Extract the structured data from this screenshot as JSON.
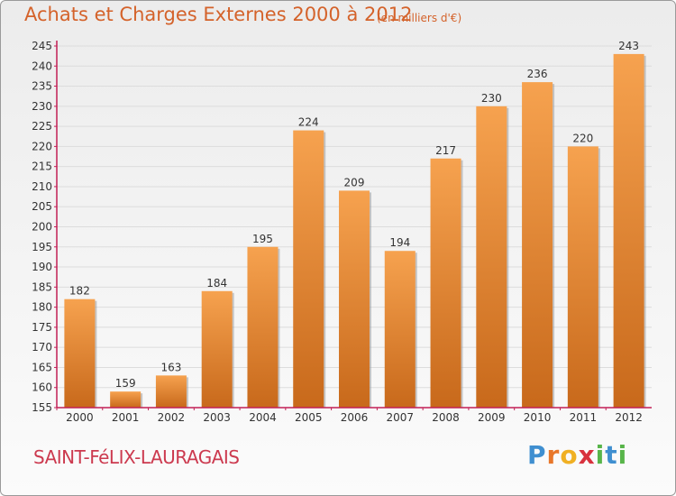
{
  "title": "Achats et Charges Externes 2000 à 2012",
  "subtitle": "(en milliers d'€)",
  "location": "SAINT-FéLIX-LAURAGAIS",
  "logo": {
    "text": "Proxiti",
    "letter_colors": [
      "#3f8fd0",
      "#e8772a",
      "#f0b023",
      "#d8323e",
      "#58b54a",
      "#3f8fd0",
      "#58b54a"
    ]
  },
  "colors": {
    "bar_light": "#f6a24f",
    "bar_dark": "#c8691b",
    "axis": "#c21f55",
    "grid": "#dcdcdc",
    "title": "#d4622a",
    "location": "#cc3a4f"
  },
  "chart_data": {
    "type": "bar",
    "categories": [
      "2000",
      "2001",
      "2002",
      "2003",
      "2004",
      "2005",
      "2006",
      "2007",
      "2008",
      "2009",
      "2010",
      "2011",
      "2012"
    ],
    "values": [
      182,
      159,
      163,
      184,
      195,
      224,
      209,
      194,
      217,
      230,
      236,
      220,
      243
    ],
    "ylim": [
      155,
      245
    ],
    "yticks": [
      155,
      160,
      165,
      170,
      175,
      180,
      185,
      190,
      195,
      200,
      205,
      210,
      215,
      220,
      225,
      230,
      235,
      240,
      245
    ],
    "grid": true,
    "xlabel": "",
    "ylabel": ""
  }
}
